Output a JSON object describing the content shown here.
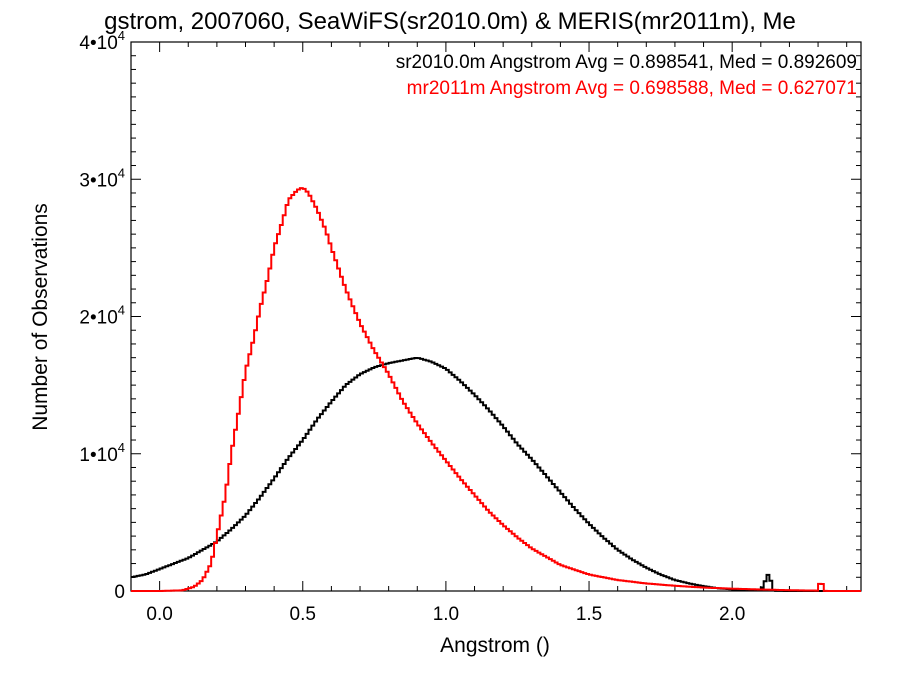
{
  "chart_data": {
    "type": "line",
    "title": "gstrom, 2007060, SeaWiFS(sr2010.0m) & MERIS(mr2011m), Me",
    "xlabel": "Angstrom ()",
    "ylabel": "Number of Observations",
    "xlim": [
      -0.1,
      2.45
    ],
    "ylim": [
      0,
      40000
    ],
    "x_ticks": [
      0.0,
      0.5,
      1.0,
      1.5,
      2.0
    ],
    "x_tick_labels": [
      "0.0",
      "0.5",
      "1.0",
      "1.5",
      "2.0"
    ],
    "y_ticks": [
      0,
      10000,
      20000,
      30000,
      40000
    ],
    "y_tick_labels": [
      {
        "mantissa": "0",
        "exponent": ""
      },
      {
        "mantissa": "1•10",
        "exponent": "4"
      },
      {
        "mantissa": "2•10",
        "exponent": "4"
      },
      {
        "mantissa": "3•10",
        "exponent": "4"
      },
      {
        "mantissa": "4•10",
        "exponent": "4"
      }
    ],
    "grid": false,
    "legend_position": "top-right",
    "series": [
      {
        "name": "sr2010.0m Angstrom Avg = 0.898541, Med = 0.892609",
        "color": "#000000",
        "x": [
          -0.1,
          -0.05,
          0.0,
          0.05,
          0.1,
          0.15,
          0.2,
          0.25,
          0.3,
          0.35,
          0.4,
          0.45,
          0.5,
          0.55,
          0.6,
          0.65,
          0.7,
          0.75,
          0.8,
          0.85,
          0.9,
          0.95,
          1.0,
          1.05,
          1.1,
          1.15,
          1.2,
          1.25,
          1.3,
          1.35,
          1.4,
          1.45,
          1.5,
          1.55,
          1.6,
          1.65,
          1.7,
          1.75,
          1.8,
          1.85,
          1.9,
          1.95,
          2.0,
          2.05,
          2.1,
          2.13,
          2.14,
          2.15,
          2.2,
          2.3,
          2.45
        ],
        "y": [
          1000,
          1200,
          1600,
          2000,
          2400,
          3000,
          3600,
          4500,
          5500,
          6800,
          8200,
          9700,
          11000,
          12500,
          13800,
          15000,
          15800,
          16300,
          16600,
          16800,
          17000,
          16700,
          16200,
          15300,
          14300,
          13200,
          12000,
          10700,
          9600,
          8400,
          7200,
          6000,
          4900,
          3900,
          3000,
          2300,
          1700,
          1200,
          800,
          550,
          350,
          200,
          120,
          60,
          30,
          1400,
          100,
          10,
          0,
          0,
          0
        ]
      },
      {
        "name": "mr2011m Angstrom Avg = 0.698588, Med = 0.627071",
        "color": "#ff0000",
        "x": [
          -0.1,
          0.0,
          0.08,
          0.12,
          0.15,
          0.18,
          0.2,
          0.23,
          0.25,
          0.28,
          0.3,
          0.33,
          0.35,
          0.38,
          0.4,
          0.43,
          0.45,
          0.48,
          0.5,
          0.52,
          0.55,
          0.58,
          0.6,
          0.65,
          0.7,
          0.75,
          0.8,
          0.85,
          0.9,
          0.95,
          1.0,
          1.05,
          1.1,
          1.15,
          1.2,
          1.25,
          1.3,
          1.35,
          1.4,
          1.5,
          1.6,
          1.7,
          1.8,
          1.9,
          2.0,
          2.1,
          2.2,
          2.25,
          2.3,
          2.31,
          2.32,
          2.33,
          2.45
        ],
        "y": [
          0,
          0,
          50,
          300,
          800,
          2000,
          4000,
          7000,
          10000,
          13500,
          16000,
          18500,
          20500,
          23000,
          25000,
          27000,
          28500,
          29200,
          29400,
          29000,
          27800,
          26300,
          25000,
          22000,
          19500,
          17500,
          15800,
          13800,
          12200,
          10800,
          9500,
          8200,
          7000,
          5800,
          4800,
          3900,
          3100,
          2500,
          1900,
          1200,
          800,
          550,
          380,
          250,
          170,
          110,
          60,
          40,
          30,
          1000,
          20,
          0,
          0
        ]
      }
    ]
  }
}
